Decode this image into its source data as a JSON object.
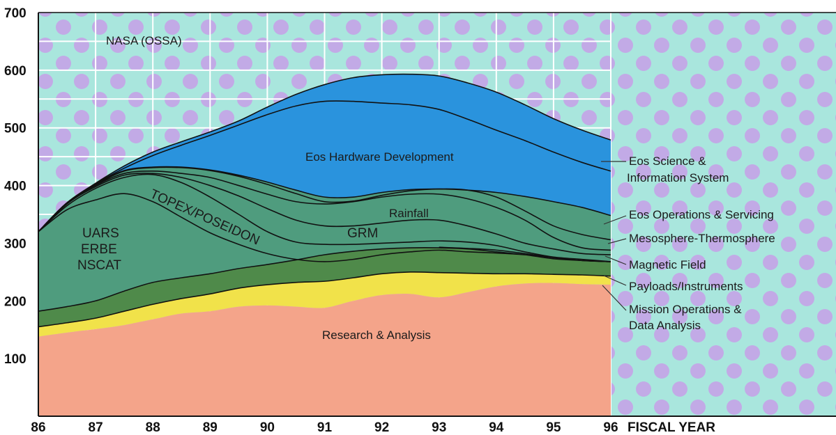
{
  "chart_data": {
    "type": "area",
    "title": "NASA (OSSA)",
    "xlabel": "FISCAL YEAR",
    "ylabel": "",
    "xlim": [
      86,
      96
    ],
    "ylim": [
      0,
      700
    ],
    "x_ticks": [
      "86",
      "87",
      "88",
      "89",
      "90",
      "91",
      "92",
      "93",
      "94",
      "95",
      "96"
    ],
    "y_ticks": [
      "100",
      "200",
      "300",
      "400",
      "500",
      "600",
      "700"
    ],
    "grid": true,
    "x": [
      86,
      86.5,
      87,
      87.5,
      88,
      88.5,
      89,
      89.5,
      90,
      90.5,
      91,
      91.5,
      92,
      92.5,
      93,
      93.5,
      94,
      94.5,
      95,
      95.5,
      96
    ],
    "boundaries": [
      {
        "name": "Research & Analysis",
        "values": [
          138,
          145,
          151,
          158,
          168,
          178,
          182,
          190,
          192,
          190,
          188,
          200,
          210,
          212,
          206,
          215,
          225,
          230,
          231,
          229,
          228
        ]
      },
      {
        "name": "Mission Operations & Data Analysis",
        "values": [
          155,
          162,
          170,
          182,
          194,
          204,
          212,
          222,
          228,
          232,
          234,
          240,
          247,
          250,
          249,
          248,
          247,
          247,
          246,
          245,
          243
        ]
      },
      {
        "name": "Payloads/Instruments",
        "values": [
          182,
          190,
          200,
          217,
          232,
          240,
          247,
          256,
          263,
          271,
          280,
          286,
          290,
          292,
          292,
          290,
          285,
          280,
          273,
          270,
          268
        ]
      },
      {
        "name": "Magnetic Field",
        "values": [
          null,
          null,
          null,
          null,
          null,
          null,
          null,
          null,
          null,
          null,
          null,
          null,
          null,
          null,
          293,
          291,
          288,
          282,
          275,
          270,
          268
        ]
      },
      {
        "name": "UARS / ERBE / NSCAT",
        "values": [
          320,
          358,
          375,
          386,
          372,
          345,
          318,
          298,
          282,
          272,
          268,
          272,
          280,
          285,
          288,
          285,
          283,
          280,
          275,
          270,
          268
        ]
      },
      {
        "name": "TOPEX/POSEIDON",
        "values": [
          320,
          365,
          395,
          414,
          419,
          405,
          380,
          350,
          320,
          302,
          298,
          298,
          300,
          302,
          304,
          302,
          296,
          285,
          276,
          272,
          268
        ]
      },
      {
        "name": "GRM",
        "values": [
          320,
          368,
          398,
          418,
          421,
          414,
          400,
          382,
          360,
          340,
          330,
          330,
          335,
          340,
          340,
          330,
          316,
          300,
          290,
          282,
          280
        ]
      },
      {
        "name": "Rainfall",
        "values": [
          320,
          370,
          400,
          421,
          425,
          421,
          414,
          400,
          385,
          372,
          368,
          372,
          380,
          385,
          385,
          377,
          362,
          340,
          310,
          292,
          288
        ]
      },
      {
        "name": "Mesosphere-Thermosphere",
        "values": [
          320,
          370,
          401,
          425,
          431,
          431,
          426,
          416,
          402,
          386,
          372,
          373,
          383,
          391,
          394,
          392,
          380,
          356,
          330,
          315,
          306
        ]
      },
      {
        "name": "Eos Operations & Servicing",
        "values": [
          320,
          370,
          402,
          426,
          432,
          432,
          427,
          418,
          406,
          392,
          380,
          380,
          388,
          393,
          394,
          392,
          388,
          381,
          372,
          362,
          348
        ]
      },
      {
        "name": "Eos Hardware Development",
        "values": [
          320,
          370,
          403,
          430,
          452,
          470,
          487,
          505,
          523,
          538,
          546,
          546,
          543,
          540,
          532,
          515,
          496,
          478,
          458,
          440,
          425
        ]
      },
      {
        "name": "Eos Science & Information System",
        "values": [
          320,
          370,
          404,
          434,
          458,
          476,
          493,
          512,
          536,
          558,
          575,
          587,
          592,
          593,
          590,
          578,
          562,
          540,
          516,
          496,
          479
        ]
      }
    ],
    "labels": {
      "region_labels": [
        "UARS",
        "ERBE",
        "NSCAT",
        "TOPEX/POSEIDON",
        "GRM",
        "Rainfall",
        "Eos Hardware Development",
        "Research & Analysis"
      ],
      "legend_labels": [
        "Eos Science &",
        "Information System",
        "Eos Operations & Servicing",
        "Mesosphere-Thermosphere",
        "Magnetic Field",
        "Payloads/Instruments",
        "Mission Operations &",
        "Data Analysis"
      ]
    },
    "colors": {
      "background_grid": "#a9e6dd",
      "background_blob": "#c7a0e8",
      "research": "#f4a48a",
      "mission_ops": "#f1e24a",
      "payloads": "#4f8a4a",
      "science_missions": "#4f9c7e",
      "eos": "#2a93dd",
      "outline": "#111111",
      "grid_line": "#ffffff"
    }
  }
}
